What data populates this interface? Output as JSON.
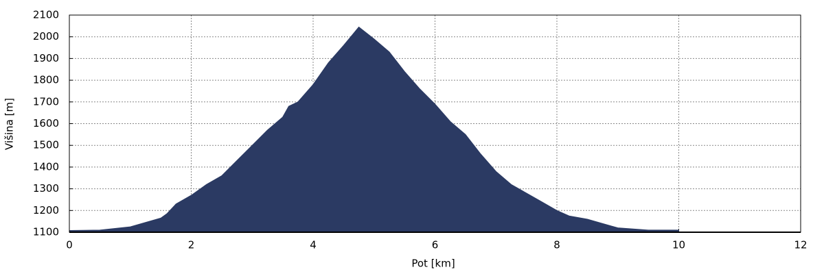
{
  "chart_data": {
    "type": "area",
    "xlabel": "Pot [km]",
    "ylabel": "Višina [m]",
    "x": [
      0,
      0.5,
      1.0,
      1.25,
      1.5,
      1.6,
      1.75,
      2.0,
      2.25,
      2.5,
      2.75,
      3.0,
      3.25,
      3.5,
      3.6,
      3.75,
      4.0,
      4.25,
      4.5,
      4.75,
      5.0,
      5.25,
      5.5,
      5.75,
      6.0,
      6.25,
      6.5,
      6.75,
      7.0,
      7.25,
      7.5,
      7.75,
      8.0,
      8.2,
      8.5,
      8.75,
      9.0,
      9.5,
      10.0
    ],
    "values": [
      1108,
      1110,
      1125,
      1145,
      1165,
      1185,
      1230,
      1270,
      1320,
      1360,
      1430,
      1500,
      1570,
      1630,
      1680,
      1700,
      1780,
      1880,
      1960,
      2045,
      1990,
      1930,
      1840,
      1760,
      1690,
      1610,
      1550,
      1460,
      1380,
      1320,
      1280,
      1240,
      1200,
      1175,
      1160,
      1140,
      1120,
      1110,
      1110
    ],
    "color": "#2b3a63",
    "xlim": [
      0,
      12
    ],
    "xticks": [
      0,
      2,
      4,
      6,
      8,
      10,
      12
    ],
    "ylim": [
      1100,
      2100
    ],
    "yticks": [
      1100,
      1200,
      1300,
      1400,
      1500,
      1600,
      1700,
      1800,
      1900,
      2000,
      2100
    ],
    "grid": true
  }
}
